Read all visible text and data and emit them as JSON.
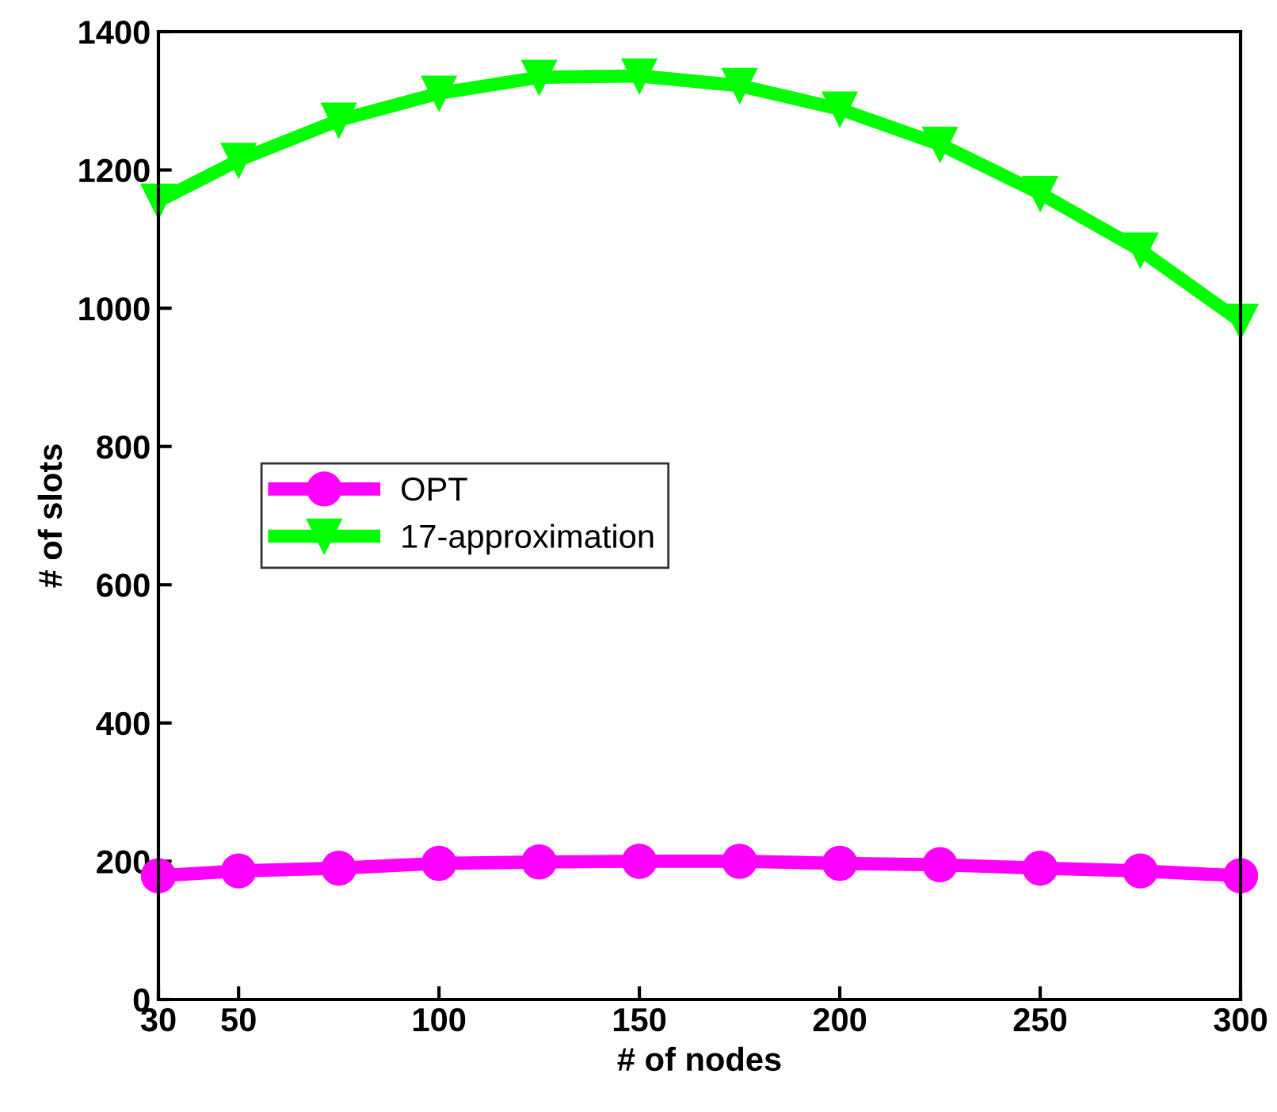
{
  "chart_data": {
    "type": "line",
    "xlabel": "# of nodes",
    "ylabel": "# of slots",
    "x": [
      30,
      50,
      75,
      100,
      125,
      150,
      175,
      200,
      225,
      250,
      275,
      300
    ],
    "series": [
      {
        "name": "OPT",
        "color": "#ff00ff",
        "marker": "circle",
        "values": [
          179,
          186,
          190,
          197,
          199,
          200,
          200,
          197,
          195,
          190,
          186,
          179
        ]
      },
      {
        "name": "17-approximation",
        "color": "#00ff00",
        "marker": "triangle",
        "values": [
          1155,
          1214,
          1272,
          1311,
          1334,
          1336,
          1322,
          1288,
          1237,
          1166,
          1084,
          981
        ]
      }
    ],
    "xlim": [
      30,
      300
    ],
    "xticks": [
      30,
      50,
      100,
      150,
      200,
      250,
      300
    ],
    "ylim": [
      0,
      1400
    ],
    "yticks": [
      0,
      200,
      400,
      600,
      800,
      1000,
      1200,
      1400
    ],
    "grid": false,
    "legend": "left",
    "line_style": "solid"
  }
}
